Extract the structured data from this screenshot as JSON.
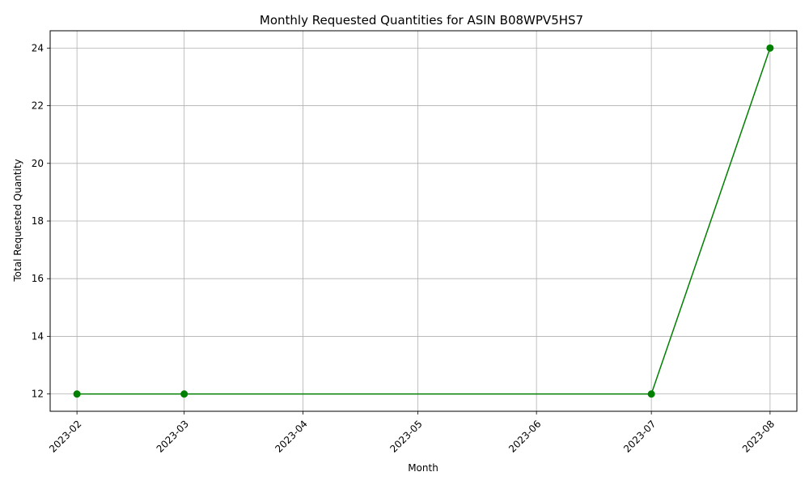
{
  "chart_data": {
    "type": "line",
    "title": "Monthly Requested Quantities for ASIN B08WPV5HS7",
    "xlabel": "Month",
    "ylabel": "Total Requested Quantity",
    "x_ticks": [
      "2023-02",
      "2023-03",
      "2023-04",
      "2023-05",
      "2023-06",
      "2023-07",
      "2023-08"
    ],
    "y_ticks": [
      12,
      14,
      16,
      18,
      20,
      22,
      24
    ],
    "ylim": [
      11.4,
      24.6
    ],
    "xlim": [
      "2023-01-25",
      "2023-08-08"
    ],
    "grid": true,
    "series": [
      {
        "color": "#008000",
        "marker": "circle",
        "points": [
          {
            "x": "2023-02-01",
            "y": 12
          },
          {
            "x": "2023-03-01",
            "y": 12
          },
          {
            "x": "2023-07-01",
            "y": 12
          },
          {
            "x": "2023-08-01",
            "y": 24
          }
        ]
      }
    ]
  }
}
